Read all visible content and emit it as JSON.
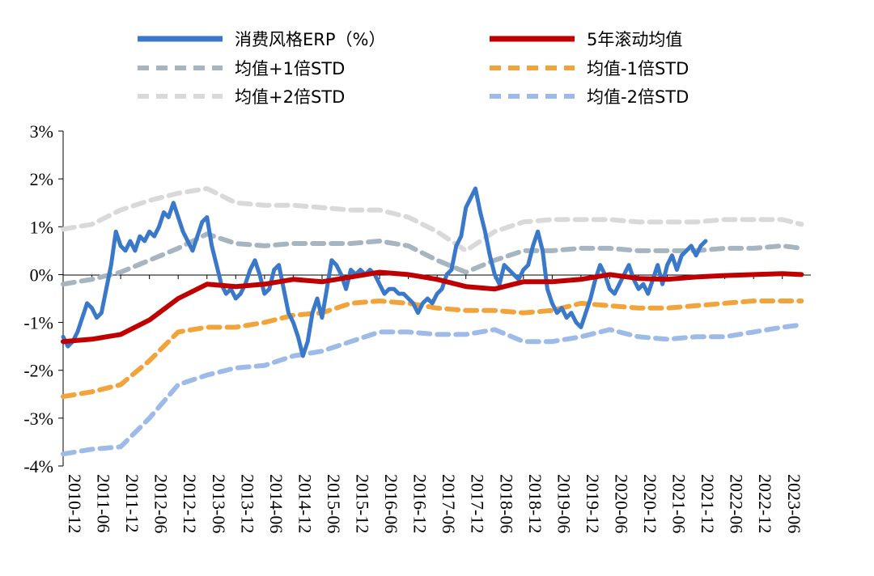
{
  "chart_data": {
    "type": "line",
    "title": "",
    "xlabel": "",
    "ylabel": "",
    "ylim": [
      -4,
      3
    ],
    "y_ticks": [
      "3%",
      "2%",
      "1%",
      "0%",
      "-1%",
      "-2%",
      "-3%",
      "-4%"
    ],
    "x_ticks": [
      "2010-12",
      "2011-06",
      "2011-12",
      "2012-06",
      "2012-12",
      "2013-06",
      "2013-12",
      "2014-06",
      "2014-12",
      "2015-06",
      "2015-12",
      "2016-06",
      "2016-12",
      "2017-06",
      "2017-12",
      "2018-06",
      "2018-12",
      "2019-06",
      "2019-12",
      "2020-06",
      "2020-12",
      "2021-06",
      "2021-12",
      "2022-06",
      "2022-12",
      "2023-06"
    ],
    "grid": false,
    "legend_position": "top",
    "series": [
      {
        "name": "消费风格ERP（%）",
        "color": "#3A78C9",
        "style": "solid",
        "points": [
          [
            "2010-12",
            -1.3
          ],
          [
            "2011-01",
            -1.5
          ],
          [
            "2011-02",
            -1.4
          ],
          [
            "2011-03",
            -1.2
          ],
          [
            "2011-04",
            -0.9
          ],
          [
            "2011-05",
            -0.6
          ],
          [
            "2011-06",
            -0.7
          ],
          [
            "2011-07",
            -0.9
          ],
          [
            "2011-08",
            -0.8
          ],
          [
            "2011-09",
            -0.3
          ],
          [
            "2011-10",
            0.2
          ],
          [
            "2011-11",
            0.9
          ],
          [
            "2011-12",
            0.6
          ],
          [
            "2012-01",
            0.5
          ],
          [
            "2012-02",
            0.7
          ],
          [
            "2012-03",
            0.5
          ],
          [
            "2012-04",
            0.8
          ],
          [
            "2012-05",
            0.7
          ],
          [
            "2012-06",
            0.9
          ],
          [
            "2012-07",
            0.8
          ],
          [
            "2012-08",
            1.0
          ],
          [
            "2012-09",
            1.3
          ],
          [
            "2012-10",
            1.2
          ],
          [
            "2012-11",
            1.5
          ],
          [
            "2012-12",
            1.2
          ],
          [
            "2013-01",
            0.9
          ],
          [
            "2013-02",
            0.7
          ],
          [
            "2013-03",
            0.5
          ],
          [
            "2013-04",
            0.8
          ],
          [
            "2013-05",
            1.1
          ],
          [
            "2013-06",
            1.2
          ],
          [
            "2013-07",
            0.6
          ],
          [
            "2013-08",
            0.2
          ],
          [
            "2013-09",
            -0.2
          ],
          [
            "2013-10",
            -0.4
          ],
          [
            "2013-11",
            -0.3
          ],
          [
            "2013-12",
            -0.5
          ],
          [
            "2014-01",
            -0.4
          ],
          [
            "2014-02",
            -0.2
          ],
          [
            "2014-03",
            0.1
          ],
          [
            "2014-04",
            0.3
          ],
          [
            "2014-05",
            0.0
          ],
          [
            "2014-06",
            -0.4
          ],
          [
            "2014-07",
            -0.3
          ],
          [
            "2014-08",
            0.1
          ],
          [
            "2014-09",
            0.2
          ],
          [
            "2014-10",
            -0.3
          ],
          [
            "2014-11",
            -0.8
          ],
          [
            "2014-12",
            -1.0
          ],
          [
            "2015-01",
            -1.3
          ],
          [
            "2015-02",
            -1.7
          ],
          [
            "2015-03",
            -1.4
          ],
          [
            "2015-04",
            -0.8
          ],
          [
            "2015-05",
            -0.5
          ],
          [
            "2015-06",
            -0.9
          ],
          [
            "2015-07",
            -0.3
          ],
          [
            "2015-08",
            0.3
          ],
          [
            "2015-09",
            0.2
          ],
          [
            "2015-10",
            0.0
          ],
          [
            "2015-11",
            -0.3
          ],
          [
            "2015-12",
            0.1
          ],
          [
            "2016-01",
            0.0
          ],
          [
            "2016-02",
            0.1
          ],
          [
            "2016-03",
            0.0
          ],
          [
            "2016-04",
            0.1
          ],
          [
            "2016-05",
            0.0
          ],
          [
            "2016-06",
            -0.2
          ],
          [
            "2016-07",
            -0.4
          ],
          [
            "2016-08",
            -0.3
          ],
          [
            "2016-09",
            -0.3
          ],
          [
            "2016-10",
            -0.4
          ],
          [
            "2016-11",
            -0.4
          ],
          [
            "2016-12",
            -0.5
          ],
          [
            "2017-01",
            -0.6
          ],
          [
            "2017-02",
            -0.8
          ],
          [
            "2017-03",
            -0.6
          ],
          [
            "2017-04",
            -0.5
          ],
          [
            "2017-05",
            -0.6
          ],
          [
            "2017-06",
            -0.4
          ],
          [
            "2017-07",
            -0.3
          ],
          [
            "2017-08",
            0.0
          ],
          [
            "2017-09",
            0.1
          ],
          [
            "2017-10",
            0.6
          ],
          [
            "2017-11",
            0.8
          ],
          [
            "2017-12",
            1.4
          ],
          [
            "2018-01",
            1.6
          ],
          [
            "2018-02",
            1.8
          ],
          [
            "2018-03",
            1.3
          ],
          [
            "2018-04",
            0.9
          ],
          [
            "2018-05",
            0.4
          ],
          [
            "2018-06",
            0.0
          ],
          [
            "2018-07",
            -0.2
          ],
          [
            "2018-08",
            0.2
          ],
          [
            "2018-09",
            0.1
          ],
          [
            "2018-10",
            0.0
          ],
          [
            "2018-11",
            -0.1
          ],
          [
            "2018-12",
            0.1
          ],
          [
            "2019-01",
            0.2
          ],
          [
            "2019-02",
            0.6
          ],
          [
            "2019-03",
            0.9
          ],
          [
            "2019-04",
            0.5
          ],
          [
            "2019-05",
            -0.3
          ],
          [
            "2019-06",
            -0.6
          ],
          [
            "2019-07",
            -0.8
          ],
          [
            "2019-08",
            -0.7
          ],
          [
            "2019-09",
            -0.9
          ],
          [
            "2019-10",
            -0.8
          ],
          [
            "2019-11",
            -1.0
          ],
          [
            "2019-12",
            -1.1
          ],
          [
            "2020-01",
            -0.8
          ],
          [
            "2020-02",
            -0.5
          ],
          [
            "2020-03",
            -0.1
          ],
          [
            "2020-04",
            0.2
          ],
          [
            "2020-05",
            0.0
          ],
          [
            "2020-06",
            -0.3
          ],
          [
            "2020-07",
            -0.4
          ],
          [
            "2020-08",
            -0.2
          ],
          [
            "2020-09",
            0.0
          ],
          [
            "2020-10",
            0.2
          ],
          [
            "2020-11",
            -0.1
          ],
          [
            "2020-12",
            -0.3
          ],
          [
            "2021-01",
            -0.2
          ],
          [
            "2021-02",
            -0.4
          ],
          [
            "2021-03",
            -0.1
          ],
          [
            "2021-04",
            0.2
          ],
          [
            "2021-05",
            -0.2
          ],
          [
            "2021-06",
            0.2
          ],
          [
            "2021-07",
            0.4
          ],
          [
            "2021-08",
            0.1
          ],
          [
            "2021-09",
            0.4
          ],
          [
            "2021-10",
            0.5
          ],
          [
            "2021-11",
            0.6
          ],
          [
            "2021-12",
            0.4
          ],
          [
            "2022-01",
            0.6
          ],
          [
            "2022-02",
            0.7
          ]
        ]
      },
      {
        "name": "5年滚动均值",
        "color": "#C00000",
        "style": "solid",
        "points": [
          [
            "2010-12",
            -1.4
          ],
          [
            "2011-06",
            -1.35
          ],
          [
            "2011-12",
            -1.25
          ],
          [
            "2012-06",
            -0.95
          ],
          [
            "2012-12",
            -0.5
          ],
          [
            "2013-06",
            -0.2
          ],
          [
            "2013-12",
            -0.25
          ],
          [
            "2014-06",
            -0.2
          ],
          [
            "2014-12",
            -0.1
          ],
          [
            "2015-06",
            -0.15
          ],
          [
            "2015-12",
            -0.05
          ],
          [
            "2016-06",
            0.05
          ],
          [
            "2016-12",
            0.0
          ],
          [
            "2017-06",
            -0.1
          ],
          [
            "2017-12",
            -0.25
          ],
          [
            "2018-06",
            -0.3
          ],
          [
            "2018-12",
            -0.15
          ],
          [
            "2019-06",
            -0.15
          ],
          [
            "2019-12",
            -0.1
          ],
          [
            "2020-06",
            0.0
          ],
          [
            "2020-12",
            -0.08
          ],
          [
            "2021-06",
            -0.1
          ],
          [
            "2021-12",
            -0.05
          ],
          [
            "2022-06",
            -0.02
          ],
          [
            "2022-12",
            0.0
          ],
          [
            "2023-06",
            0.02
          ],
          [
            "2023-10",
            0.0
          ]
        ]
      },
      {
        "name": "均值+1倍STD",
        "color": "#A6B5C0",
        "style": "dashed",
        "points": [
          [
            "2010-12",
            -0.2
          ],
          [
            "2011-06",
            -0.1
          ],
          [
            "2011-12",
            0.05
          ],
          [
            "2012-06",
            0.3
          ],
          [
            "2012-12",
            0.55
          ],
          [
            "2013-06",
            0.85
          ],
          [
            "2013-12",
            0.65
          ],
          [
            "2014-06",
            0.6
          ],
          [
            "2014-12",
            0.65
          ],
          [
            "2015-06",
            0.65
          ],
          [
            "2015-12",
            0.65
          ],
          [
            "2016-06",
            0.7
          ],
          [
            "2016-12",
            0.6
          ],
          [
            "2017-06",
            0.3
          ],
          [
            "2017-12",
            0.05
          ],
          [
            "2018-06",
            0.3
          ],
          [
            "2018-12",
            0.5
          ],
          [
            "2019-06",
            0.5
          ],
          [
            "2019-12",
            0.55
          ],
          [
            "2020-06",
            0.55
          ],
          [
            "2020-12",
            0.5
          ],
          [
            "2021-06",
            0.5
          ],
          [
            "2021-12",
            0.5
          ],
          [
            "2022-06",
            0.55
          ],
          [
            "2022-12",
            0.55
          ],
          [
            "2023-06",
            0.6
          ],
          [
            "2023-10",
            0.55
          ]
        ]
      },
      {
        "name": "均值-1倍STD",
        "color": "#F2A33A",
        "style": "dashed",
        "points": [
          [
            "2010-12",
            -2.55
          ],
          [
            "2011-06",
            -2.45
          ],
          [
            "2011-12",
            -2.3
          ],
          [
            "2012-06",
            -1.8
          ],
          [
            "2012-12",
            -1.2
          ],
          [
            "2013-06",
            -1.1
          ],
          [
            "2013-12",
            -1.1
          ],
          [
            "2014-06",
            -1.0
          ],
          [
            "2014-12",
            -0.85
          ],
          [
            "2015-06",
            -0.8
          ],
          [
            "2015-12",
            -0.6
          ],
          [
            "2016-06",
            -0.55
          ],
          [
            "2016-12",
            -0.6
          ],
          [
            "2017-06",
            -0.7
          ],
          [
            "2017-12",
            -0.75
          ],
          [
            "2018-06",
            -0.75
          ],
          [
            "2018-12",
            -0.8
          ],
          [
            "2019-06",
            -0.75
          ],
          [
            "2019-12",
            -0.6
          ],
          [
            "2020-06",
            -0.65
          ],
          [
            "2020-12",
            -0.7
          ],
          [
            "2021-06",
            -0.7
          ],
          [
            "2021-12",
            -0.65
          ],
          [
            "2022-06",
            -0.6
          ],
          [
            "2022-12",
            -0.55
          ],
          [
            "2023-06",
            -0.55
          ],
          [
            "2023-10",
            -0.55
          ]
        ]
      },
      {
        "name": "均值+2倍STD",
        "color": "#D9D9D9",
        "style": "dashed",
        "points": [
          [
            "2010-12",
            0.95
          ],
          [
            "2011-06",
            1.05
          ],
          [
            "2011-12",
            1.35
          ],
          [
            "2012-06",
            1.55
          ],
          [
            "2012-12",
            1.7
          ],
          [
            "2013-06",
            1.8
          ],
          [
            "2013-12",
            1.5
          ],
          [
            "2014-06",
            1.45
          ],
          [
            "2014-12",
            1.45
          ],
          [
            "2015-06",
            1.4
          ],
          [
            "2015-12",
            1.35
          ],
          [
            "2016-06",
            1.35
          ],
          [
            "2016-12",
            1.2
          ],
          [
            "2017-06",
            0.9
          ],
          [
            "2017-12",
            0.5
          ],
          [
            "2018-06",
            0.9
          ],
          [
            "2018-12",
            1.1
          ],
          [
            "2019-06",
            1.15
          ],
          [
            "2019-12",
            1.15
          ],
          [
            "2020-06",
            1.15
          ],
          [
            "2020-12",
            1.1
          ],
          [
            "2021-06",
            1.1
          ],
          [
            "2021-12",
            1.1
          ],
          [
            "2022-06",
            1.15
          ],
          [
            "2022-12",
            1.15
          ],
          [
            "2023-06",
            1.15
          ],
          [
            "2023-10",
            1.05
          ]
        ]
      },
      {
        "name": "均值-2倍STD",
        "color": "#9DBBE6",
        "style": "dashed",
        "points": [
          [
            "2010-12",
            -3.75
          ],
          [
            "2011-06",
            -3.65
          ],
          [
            "2011-12",
            -3.6
          ],
          [
            "2012-06",
            -3.0
          ],
          [
            "2012-12",
            -2.3
          ],
          [
            "2013-06",
            -2.1
          ],
          [
            "2013-12",
            -1.95
          ],
          [
            "2014-06",
            -1.9
          ],
          [
            "2014-12",
            -1.7
          ],
          [
            "2015-06",
            -1.6
          ],
          [
            "2015-12",
            -1.4
          ],
          [
            "2016-06",
            -1.2
          ],
          [
            "2016-12",
            -1.2
          ],
          [
            "2017-06",
            -1.25
          ],
          [
            "2017-12",
            -1.25
          ],
          [
            "2018-06",
            -1.15
          ],
          [
            "2018-12",
            -1.4
          ],
          [
            "2019-06",
            -1.4
          ],
          [
            "2019-12",
            -1.3
          ],
          [
            "2020-06",
            -1.15
          ],
          [
            "2020-12",
            -1.3
          ],
          [
            "2021-06",
            -1.35
          ],
          [
            "2021-12",
            -1.3
          ],
          [
            "2022-06",
            -1.3
          ],
          [
            "2022-12",
            -1.2
          ],
          [
            "2023-06",
            -1.1
          ],
          [
            "2023-10",
            -1.05
          ]
        ]
      }
    ]
  }
}
